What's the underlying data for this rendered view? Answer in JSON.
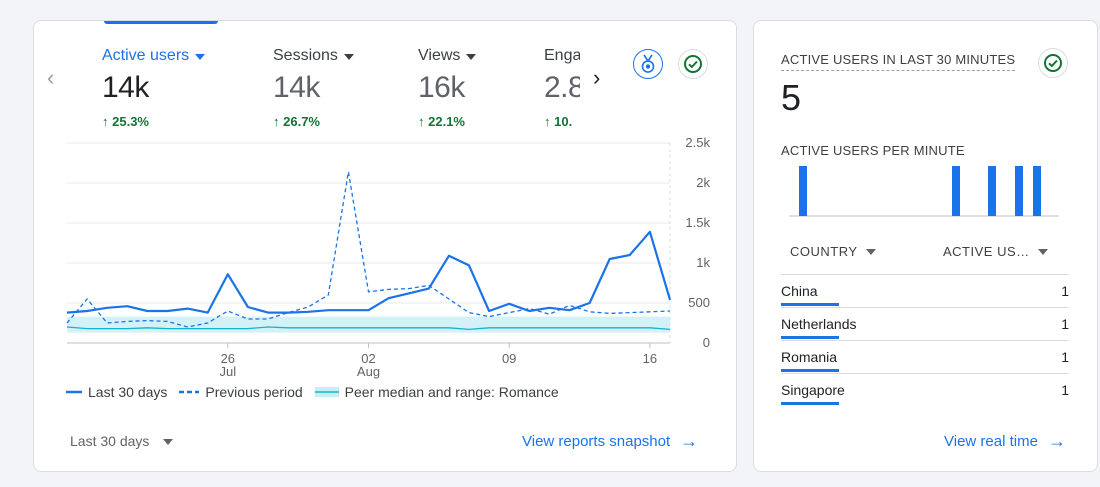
{
  "main_card": {
    "metrics": [
      {
        "label": "Active users",
        "value": "14k",
        "change": "25.3%",
        "active": true
      },
      {
        "label": "Sessions",
        "value": "14k",
        "change": "26.7%",
        "active": false
      },
      {
        "label": "Views",
        "value": "16k",
        "change": "22.1%",
        "active": false
      },
      {
        "label": "Enga",
        "value": "2.8",
        "change": "10.",
        "active": false
      }
    ],
    "legend": {
      "current": "Last 30 days",
      "previous": "Previous period",
      "peer": "Peer median and range: Romance"
    },
    "date_range": "Last 30 days",
    "snapshot_link": "View reports snapshot"
  },
  "chart_data": {
    "type": "line",
    "x_ticks": [
      {
        "day": "26",
        "month": "Jul",
        "index": 8
      },
      {
        "day": "02",
        "month": "Aug",
        "index": 15
      },
      {
        "day": "09",
        "month": "",
        "index": 22
      },
      {
        "day": "16",
        "month": "",
        "index": 29
      }
    ],
    "y_ticks": [
      "2.5k",
      "2k",
      "1.5k",
      "1k",
      "500",
      "0"
    ],
    "ylim": [
      0,
      2500
    ],
    "series": [
      {
        "name": "Last 30 days",
        "style": "solid",
        "color": "#1a73e8",
        "values": [
          380,
          400,
          440,
          460,
          400,
          400,
          430,
          380,
          860,
          450,
          380,
          380,
          390,
          410,
          410,
          410,
          560,
          620,
          680,
          1090,
          970,
          400,
          490,
          400,
          440,
          410,
          500,
          1050,
          1100,
          1390,
          540
        ]
      },
      {
        "name": "Previous period",
        "style": "dashed",
        "color": "#1a73e8",
        "values": [
          250,
          550,
          250,
          270,
          280,
          270,
          200,
          250,
          400,
          300,
          300,
          380,
          450,
          600,
          2140,
          640,
          670,
          680,
          720,
          550,
          380,
          330,
          380,
          430,
          360,
          470,
          390,
          370,
          380,
          390,
          400
        ]
      },
      {
        "name": "Peer median and range: Romance",
        "style": "band",
        "color": "#12b5cb",
        "values": [
          200,
          180,
          180,
          180,
          190,
          180,
          180,
          180,
          180,
          180,
          200,
          190,
          190,
          190,
          190,
          190,
          190,
          190,
          190,
          190,
          170,
          190,
          190,
          190,
          190,
          190,
          190,
          190,
          190,
          190,
          170
        ],
        "range_low": [
          130,
          130,
          130,
          130,
          130,
          130,
          130,
          130,
          130,
          130,
          130,
          130,
          130,
          130,
          130,
          130,
          130,
          130,
          130,
          130,
          130,
          130,
          130,
          130,
          130,
          130,
          130,
          130,
          130,
          130,
          130
        ],
        "range_high": [
          330,
          330,
          330,
          330,
          330,
          330,
          330,
          330,
          330,
          330,
          330,
          330,
          330,
          330,
          330,
          330,
          330,
          330,
          330,
          330,
          330,
          330,
          330,
          330,
          330,
          330,
          330,
          330,
          330,
          330,
          330
        ]
      }
    ]
  },
  "realtime_card": {
    "title": "ACTIVE USERS IN LAST 30 MINUTES",
    "value": "5",
    "per_minute_label": "ACTIVE USERS PER MINUTE",
    "per_minute_values": [
      0,
      1,
      0,
      0,
      0,
      0,
      0,
      0,
      0,
      0,
      0,
      0,
      0,
      0,
      0,
      0,
      0,
      0,
      1,
      0,
      0,
      0,
      1,
      0,
      0,
      1,
      0,
      1,
      0,
      0
    ],
    "table": {
      "col_country": "COUNTRY",
      "col_users": "ACTIVE US…",
      "rows": [
        {
          "country": "China",
          "users": "1"
        },
        {
          "country": "Netherlands",
          "users": "1"
        },
        {
          "country": "Romania",
          "users": "1"
        },
        {
          "country": "Singapore",
          "users": "1"
        }
      ]
    },
    "realtime_link": "View real time"
  },
  "colors": {
    "accent": "#1a73e8",
    "positive": "#137333",
    "peer": "#12b5cb"
  }
}
